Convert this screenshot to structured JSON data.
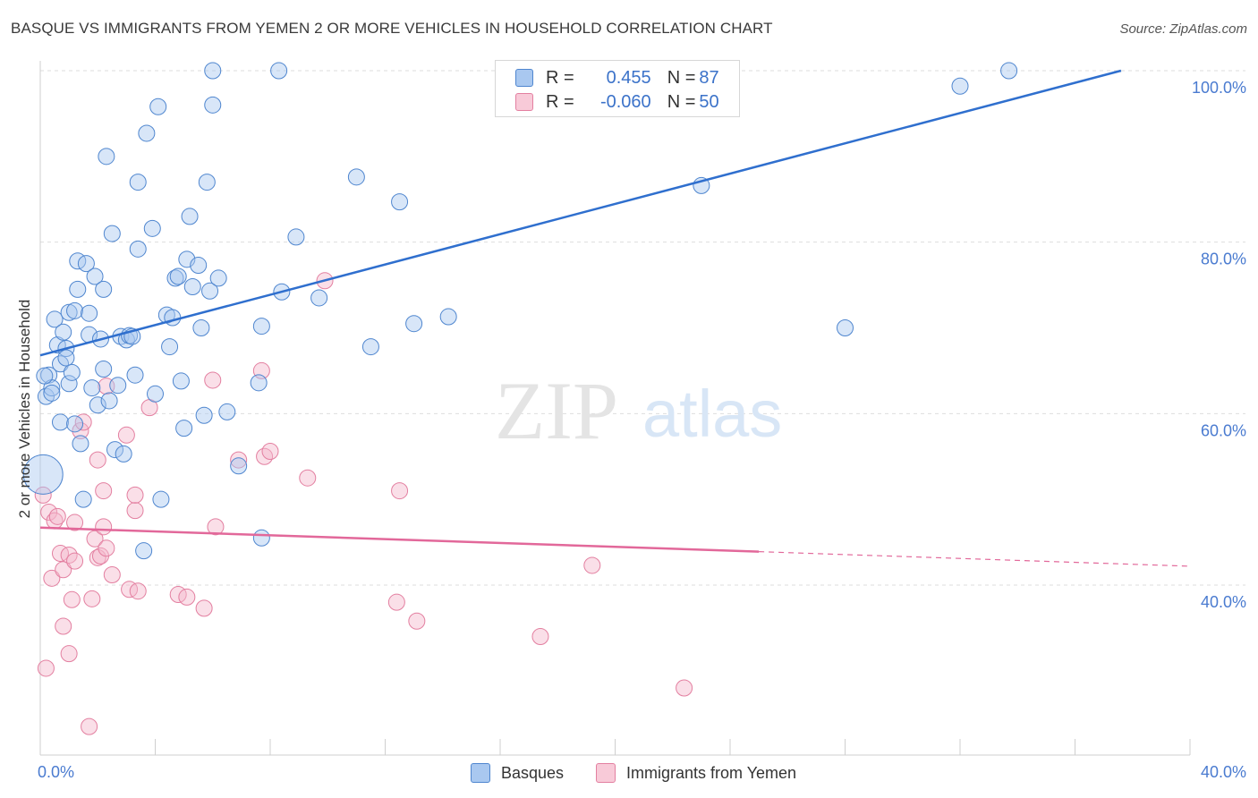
{
  "title": "BASQUE VS IMMIGRANTS FROM YEMEN 2 OR MORE VEHICLES IN HOUSEHOLD CORRELATION CHART",
  "source": "Source: ZipAtlas.com",
  "watermark": {
    "zip": "ZIP",
    "atlas": "atlas"
  },
  "colors": {
    "basques_fill": "#a9c8f0",
    "basques_stroke": "#4f86cf",
    "basques_line": "#2f6fce",
    "yemen_fill": "#f5b9cc",
    "yemen_stroke": "#e37fa0",
    "yemen_line": "#e2689a",
    "axis_text": "#4a7bd0",
    "grid": "#dddddd"
  },
  "legend": {
    "rows": [
      {
        "r_label": "R = ",
        "r_value": " 0.455",
        "n_label": "N = ",
        "n_value": "87"
      },
      {
        "r_label": "R = ",
        "r_value": "-0.060",
        "n_label": "N = ",
        "n_value": "50"
      }
    ]
  },
  "bottom_legend": {
    "basques": "Basques",
    "yemen": "Immigrants from Yemen"
  },
  "chart_data": {
    "type": "scatter",
    "title": "BASQUE VS IMMIGRANTS FROM YEMEN 2 OR MORE VEHICLES IN HOUSEHOLD CORRELATION CHART",
    "xlabel": "",
    "ylabel": "2 or more Vehicles in Household",
    "xlim": [
      0,
      40
    ],
    "ylim": [
      22,
      102
    ],
    "x_tick_labels": [
      "0.0%",
      "40.0%"
    ],
    "y_tick_labels": [
      "40.0%",
      "60.0%",
      "80.0%",
      "100.0%"
    ],
    "y_ticks": [
      40,
      60,
      80,
      100
    ],
    "grid": true,
    "legend_position": "top-center",
    "series": [
      {
        "name": "Basques",
        "R": 0.455,
        "N": 87,
        "trend": {
          "x": [
            0,
            37.6
          ],
          "y": [
            66.8,
            100.0
          ]
        },
        "points": [
          [
            0.2,
            62.0
          ],
          [
            0.3,
            64.5
          ],
          [
            0.4,
            63.0
          ],
          [
            0.5,
            71.0
          ],
          [
            0.6,
            68.0
          ],
          [
            0.7,
            59.0
          ],
          [
            0.7,
            65.8
          ],
          [
            0.8,
            69.5
          ],
          [
            0.9,
            67.6
          ],
          [
            0.9,
            66.5
          ],
          [
            1.0,
            71.8
          ],
          [
            1.0,
            63.5
          ],
          [
            1.1,
            64.8
          ],
          [
            1.2,
            72.0
          ],
          [
            1.3,
            74.5
          ],
          [
            1.3,
            77.8
          ],
          [
            1.4,
            56.5
          ],
          [
            1.5,
            50.0
          ],
          [
            1.6,
            77.5
          ],
          [
            1.7,
            69.2
          ],
          [
            1.7,
            71.7
          ],
          [
            1.8,
            63.0
          ],
          [
            1.9,
            76.0
          ],
          [
            2.0,
            61.0
          ],
          [
            2.1,
            68.7
          ],
          [
            2.2,
            65.2
          ],
          [
            2.2,
            74.5
          ],
          [
            2.3,
            90.0
          ],
          [
            2.4,
            61.5
          ],
          [
            2.5,
            81.0
          ],
          [
            2.6,
            55.8
          ],
          [
            2.7,
            63.3
          ],
          [
            2.8,
            69.0
          ],
          [
            2.9,
            55.3
          ],
          [
            3.0,
            68.6
          ],
          [
            3.1,
            69.1
          ],
          [
            3.2,
            69.0
          ],
          [
            3.3,
            64.5
          ],
          [
            3.4,
            87.0
          ],
          [
            3.4,
            79.2
          ],
          [
            3.6,
            44.0
          ],
          [
            3.7,
            92.7
          ],
          [
            3.9,
            81.6
          ],
          [
            4.0,
            62.3
          ],
          [
            4.1,
            95.8
          ],
          [
            4.2,
            50.0
          ],
          [
            4.4,
            71.5
          ],
          [
            4.5,
            67.8
          ],
          [
            4.6,
            71.2
          ],
          [
            4.7,
            75.8
          ],
          [
            4.8,
            76.0
          ],
          [
            4.9,
            63.8
          ],
          [
            5.0,
            58.3
          ],
          [
            5.1,
            78.0
          ],
          [
            5.2,
            83.0
          ],
          [
            5.3,
            74.8
          ],
          [
            5.5,
            77.3
          ],
          [
            5.6,
            70.0
          ],
          [
            5.7,
            59.8
          ],
          [
            5.8,
            87.0
          ],
          [
            5.9,
            74.3
          ],
          [
            6.0,
            96.0
          ],
          [
            6.0,
            100.0
          ],
          [
            6.2,
            75.8
          ],
          [
            6.5,
            60.2
          ],
          [
            6.9,
            53.9
          ],
          [
            7.6,
            63.6
          ],
          [
            7.7,
            70.2
          ],
          [
            7.7,
            45.5
          ],
          [
            8.3,
            100.0
          ],
          [
            8.4,
            74.2
          ],
          [
            8.9,
            80.6
          ],
          [
            9.7,
            73.5
          ],
          [
            11.0,
            87.6
          ],
          [
            11.5,
            67.8
          ],
          [
            12.5,
            84.7
          ],
          [
            13.0,
            70.5
          ],
          [
            14.2,
            71.3
          ],
          [
            20.9,
            100.0
          ],
          [
            23.0,
            86.6
          ],
          [
            28.0,
            70.0
          ],
          [
            32.0,
            98.2
          ],
          [
            33.7,
            100.0
          ],
          [
            0.1,
            52.9
          ],
          [
            0.15,
            64.4
          ],
          [
            1.2,
            58.8
          ],
          [
            0.4,
            62.4
          ]
        ]
      },
      {
        "name": "Immigrants from Yemen",
        "R": -0.06,
        "N": 50,
        "trend": {
          "x": [
            0,
            25.0
          ],
          "y": [
            46.7,
            43.9
          ]
        },
        "trend_dashed": {
          "x": [
            25.0,
            40.0
          ],
          "y": [
            43.9,
            42.2
          ]
        },
        "points": [
          [
            0.1,
            50.5
          ],
          [
            0.2,
            30.3
          ],
          [
            0.3,
            48.5
          ],
          [
            0.4,
            40.8
          ],
          [
            0.5,
            47.5
          ],
          [
            0.6,
            48.0
          ],
          [
            0.7,
            43.7
          ],
          [
            0.8,
            41.8
          ],
          [
            0.8,
            35.2
          ],
          [
            1.0,
            43.5
          ],
          [
            1.0,
            32.0
          ],
          [
            1.1,
            38.3
          ],
          [
            1.2,
            42.8
          ],
          [
            1.2,
            47.3
          ],
          [
            1.4,
            58.0
          ],
          [
            1.5,
            59.0
          ],
          [
            1.7,
            23.5
          ],
          [
            1.8,
            38.4
          ],
          [
            1.9,
            45.4
          ],
          [
            2.0,
            43.2
          ],
          [
            2.0,
            54.6
          ],
          [
            2.1,
            43.4
          ],
          [
            2.2,
            51.0
          ],
          [
            2.2,
            46.8
          ],
          [
            2.3,
            44.3
          ],
          [
            2.3,
            63.2
          ],
          [
            3.0,
            57.5
          ],
          [
            3.1,
            39.5
          ],
          [
            3.3,
            48.7
          ],
          [
            3.3,
            50.5
          ],
          [
            3.4,
            39.3
          ],
          [
            3.8,
            60.7
          ],
          [
            4.8,
            38.9
          ],
          [
            5.1,
            38.6
          ],
          [
            5.7,
            37.3
          ],
          [
            6.0,
            63.9
          ],
          [
            6.1,
            46.8
          ],
          [
            6.9,
            54.6
          ],
          [
            7.7,
            65.0
          ],
          [
            7.8,
            55.0
          ],
          [
            8.0,
            55.6
          ],
          [
            9.3,
            52.5
          ],
          [
            9.9,
            75.5
          ],
          [
            12.4,
            38.0
          ],
          [
            12.5,
            51.0
          ],
          [
            13.1,
            35.8
          ],
          [
            17.4,
            34.0
          ],
          [
            19.2,
            42.3
          ],
          [
            22.4,
            28.0
          ],
          [
            2.5,
            41.2
          ]
        ]
      }
    ]
  }
}
